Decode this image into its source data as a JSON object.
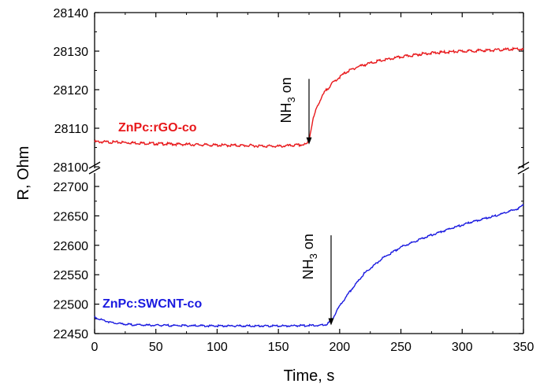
{
  "chart_data": {
    "type": "line",
    "xlabel": "Time, s",
    "ylabel": "R, Ohm",
    "grid": false,
    "axis_break": "between 28100 and 22700",
    "x_ticks": [
      "0",
      "50",
      "100",
      "150",
      "200",
      "250",
      "300",
      "350"
    ],
    "xlim": [
      0,
      350
    ],
    "panels": [
      {
        "name": "upper",
        "ylim": [
          28100,
          28140
        ],
        "y_ticks": [
          "28100",
          "28110",
          "28120",
          "28130",
          "28140"
        ],
        "y_tick_values": [
          28100,
          28110,
          28120,
          28130,
          28140
        ]
      },
      {
        "name": "lower",
        "ylim": [
          22450,
          22700
        ],
        "y_ticks": [
          "22450",
          "22500",
          "22550",
          "22600",
          "22650",
          "22700"
        ],
        "y_tick_values": [
          22450,
          22500,
          22550,
          22600,
          22650,
          22700
        ]
      }
    ],
    "series": [
      {
        "name": "ZnPc:rGO-co",
        "panel": "upper",
        "color": "#e8191c",
        "x": [
          0,
          25,
          50,
          75,
          100,
          125,
          150,
          165,
          173,
          175,
          178,
          182,
          188,
          195,
          205,
          215,
          230,
          250,
          270,
          290,
          310,
          330,
          345,
          350
        ],
        "values": [
          28106.5,
          28106.3,
          28106,
          28105.8,
          28105.6,
          28105.5,
          28105.3,
          28105.6,
          28105.8,
          28107,
          28112,
          28116,
          28119.5,
          28122,
          28124.5,
          28126,
          28127.3,
          28128.5,
          28129.4,
          28129.8,
          28130.1,
          28130.3,
          28130.6,
          28130.4
        ]
      },
      {
        "name": "ZnPc:SWCNT-co",
        "panel": "lower",
        "color": "#1a1ae0",
        "x": [
          0,
          5,
          15,
          30,
          50,
          100,
          150,
          185,
          190,
          195,
          200,
          210,
          220,
          235,
          250,
          270,
          290,
          310,
          330,
          345,
          350
        ],
        "values": [
          22478,
          22474,
          22468,
          22465,
          22464,
          22463,
          22463,
          22464,
          22466,
          22478,
          22497,
          22526,
          22552,
          22578,
          22597,
          22614,
          22628,
          22641,
          22652,
          22662,
          22668
        ]
      }
    ],
    "annotations": [
      {
        "text": "NH",
        "sub": "3",
        "suffix": " on",
        "panel": "upper",
        "x": 175,
        "y_from": 28122.8,
        "y_to": 28105.8
      },
      {
        "text": "NH",
        "sub": "3",
        "suffix": " on",
        "panel": "lower",
        "x": 193,
        "y_from": 22617,
        "y_to": 22464
      }
    ]
  }
}
